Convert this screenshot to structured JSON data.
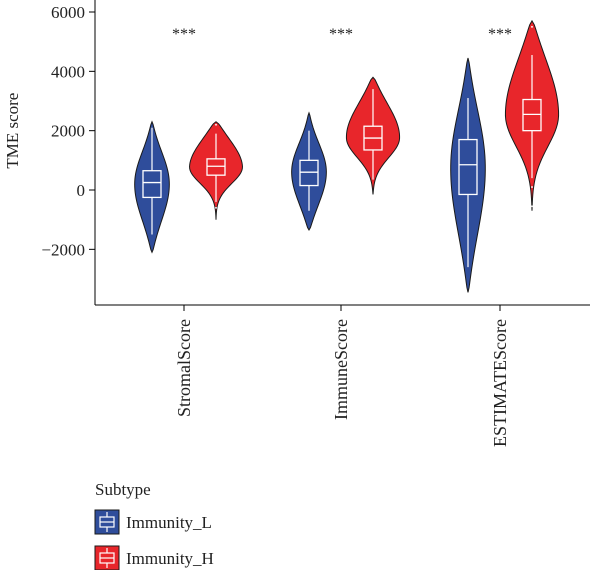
{
  "chart_data": {
    "type": "violin",
    "ylabel": "TME score",
    "ylim": [
      -4000,
      6000
    ],
    "yticks": [
      -2000,
      0,
      2000,
      4000,
      6000
    ],
    "ytick_labels": [
      "−2000",
      "0",
      "2000",
      "4000",
      "6000"
    ],
    "categories": [
      "StromalScore",
      "ImmuneScore",
      "ESTIMATEScore"
    ],
    "significance": [
      "***",
      "***",
      "***"
    ],
    "legend": {
      "title": "Subtype",
      "position": "bottom-left",
      "entries": [
        "Immunity_L",
        "Immunity_H"
      ]
    },
    "series": [
      {
        "name": "Immunity_L",
        "color": "#2F4D9B",
        "violins": [
          {
            "min": -2100,
            "max": 2300,
            "q1": -250,
            "median": 250,
            "q3": 650,
            "whisker_low": -1500,
            "whisker_high": 2100,
            "outliers": []
          },
          {
            "min": -1350,
            "max": 2600,
            "q1": 150,
            "median": 600,
            "q3": 1000,
            "whisker_low": -700,
            "whisker_high": 2000,
            "outliers": []
          },
          {
            "min": -3450,
            "max": 4450,
            "q1": -150,
            "median": 850,
            "q3": 1700,
            "whisker_low": -2600,
            "whisker_high": 3100,
            "outliers": []
          }
        ]
      },
      {
        "name": "Immunity_H",
        "color": "#E8262B",
        "violins": [
          {
            "min": -1000,
            "max": 2300,
            "q1": 500,
            "median": 800,
            "q3": 1050,
            "whisker_low": -400,
            "whisker_high": 1900,
            "outliers": [
              2200,
              -600
            ]
          },
          {
            "min": -150,
            "max": 3800,
            "q1": 1350,
            "median": 1750,
            "q3": 2150,
            "whisker_low": 350,
            "whisker_high": 3400,
            "outliers": []
          },
          {
            "min": -700,
            "max": 5700,
            "q1": 2000,
            "median": 2550,
            "q3": 3050,
            "whisker_low": 400,
            "whisker_high": 4550,
            "outliers": [
              100,
              5500,
              -550
            ]
          }
        ]
      }
    ]
  }
}
